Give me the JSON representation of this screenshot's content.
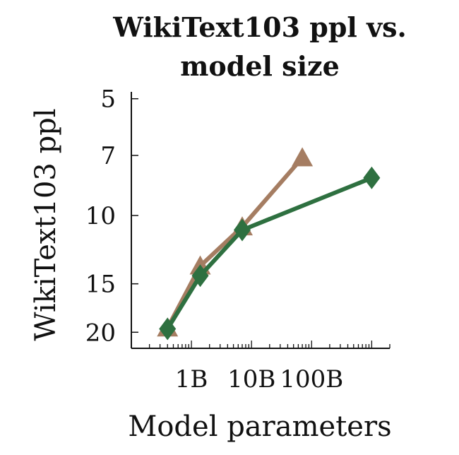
{
  "chart_data": {
    "type": "line",
    "title_lines": [
      "WikiText103 ppl vs.",
      "model size"
    ],
    "xlabel": "Model parameters",
    "ylabel": "WikiText103 ppl",
    "x_scale": "log",
    "y_scale": "log",
    "y_inverted": true,
    "xlim": [
      100000000,
      2000000000000
    ],
    "ylim": [
      22,
      4.8
    ],
    "x_ticks": [
      {
        "value": 1000000000,
        "label": "1B"
      },
      {
        "value": 10000000000,
        "label": "10B"
      },
      {
        "value": 100000000000,
        "label": "100B"
      }
    ],
    "y_ticks": [
      {
        "value": 5,
        "label": "5"
      },
      {
        "value": 7,
        "label": "7"
      },
      {
        "value": 10,
        "label": "10"
      },
      {
        "value": 15,
        "label": "15"
      },
      {
        "value": 20,
        "label": "20"
      }
    ],
    "grid": false,
    "legend": "none",
    "series": [
      {
        "marker": "triangle",
        "color": "#a57d62",
        "points": [
          {
            "x": 400000000,
            "y": 19.5
          },
          {
            "x": 1400000000,
            "y": 13.5
          },
          {
            "x": 7000000000,
            "y": 10.7
          },
          {
            "x": 70000000000,
            "y": 7.1
          }
        ]
      },
      {
        "marker": "diamond",
        "color": "#2e7040",
        "points": [
          {
            "x": 400000000,
            "y": 19.6
          },
          {
            "x": 1400000000,
            "y": 14.3
          },
          {
            "x": 7000000000,
            "y": 10.9
          },
          {
            "x": 1000000000000,
            "y": 8.0
          }
        ]
      }
    ]
  }
}
